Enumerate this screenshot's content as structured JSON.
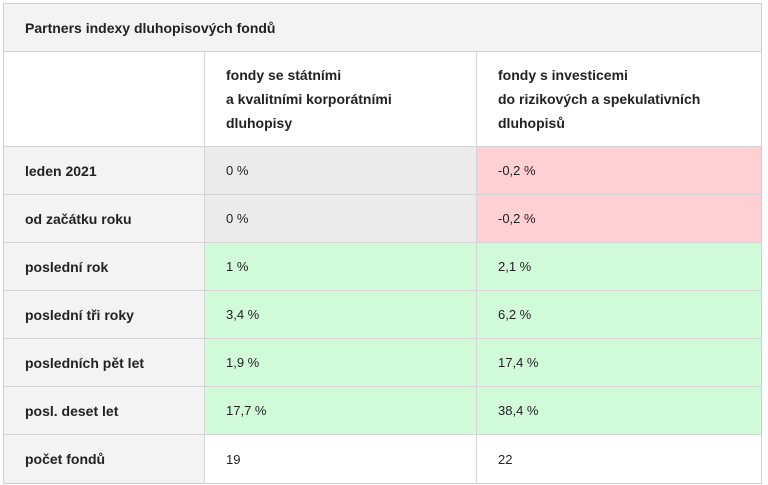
{
  "table": {
    "title": "Partners indexy dluhopisových fondů",
    "columns": [
      "",
      "fondy se státními\na kvalitními korporátními\ndluhopisy",
      "fondy s investicemi\ndo rizikových a spekulativních\ndluhopisů"
    ],
    "rows": [
      {
        "label": "leden 2021",
        "values": [
          "0 %",
          "-0,2 %"
        ],
        "colors": [
          "grey",
          "red"
        ]
      },
      {
        "label": "od začátku roku",
        "values": [
          "0 %",
          "-0,2 %"
        ],
        "colors": [
          "grey",
          "red"
        ]
      },
      {
        "label": "poslední rok",
        "values": [
          "1 %",
          "2,1 %"
        ],
        "colors": [
          "green",
          "green"
        ]
      },
      {
        "label": "poslední tři roky",
        "values": [
          "3,4 %",
          "6,2 %"
        ],
        "colors": [
          "green",
          "green"
        ]
      },
      {
        "label": "posledních pět let",
        "values": [
          "1,9 %",
          "17,4 %"
        ],
        "colors": [
          "green",
          "green"
        ]
      },
      {
        "label": "posl. deset let",
        "values": [
          "17,7 %",
          "38,4 %"
        ],
        "colors": [
          "green",
          "green"
        ]
      },
      {
        "label": "počet fondů",
        "values": [
          "19",
          "22"
        ],
        "colors": [
          "white",
          "white"
        ]
      }
    ]
  },
  "colors": {
    "negative": "#ffd0d3",
    "positive": "#d1fbd8",
    "neutral": "#ebebeb",
    "header": "#f3f3f3"
  }
}
